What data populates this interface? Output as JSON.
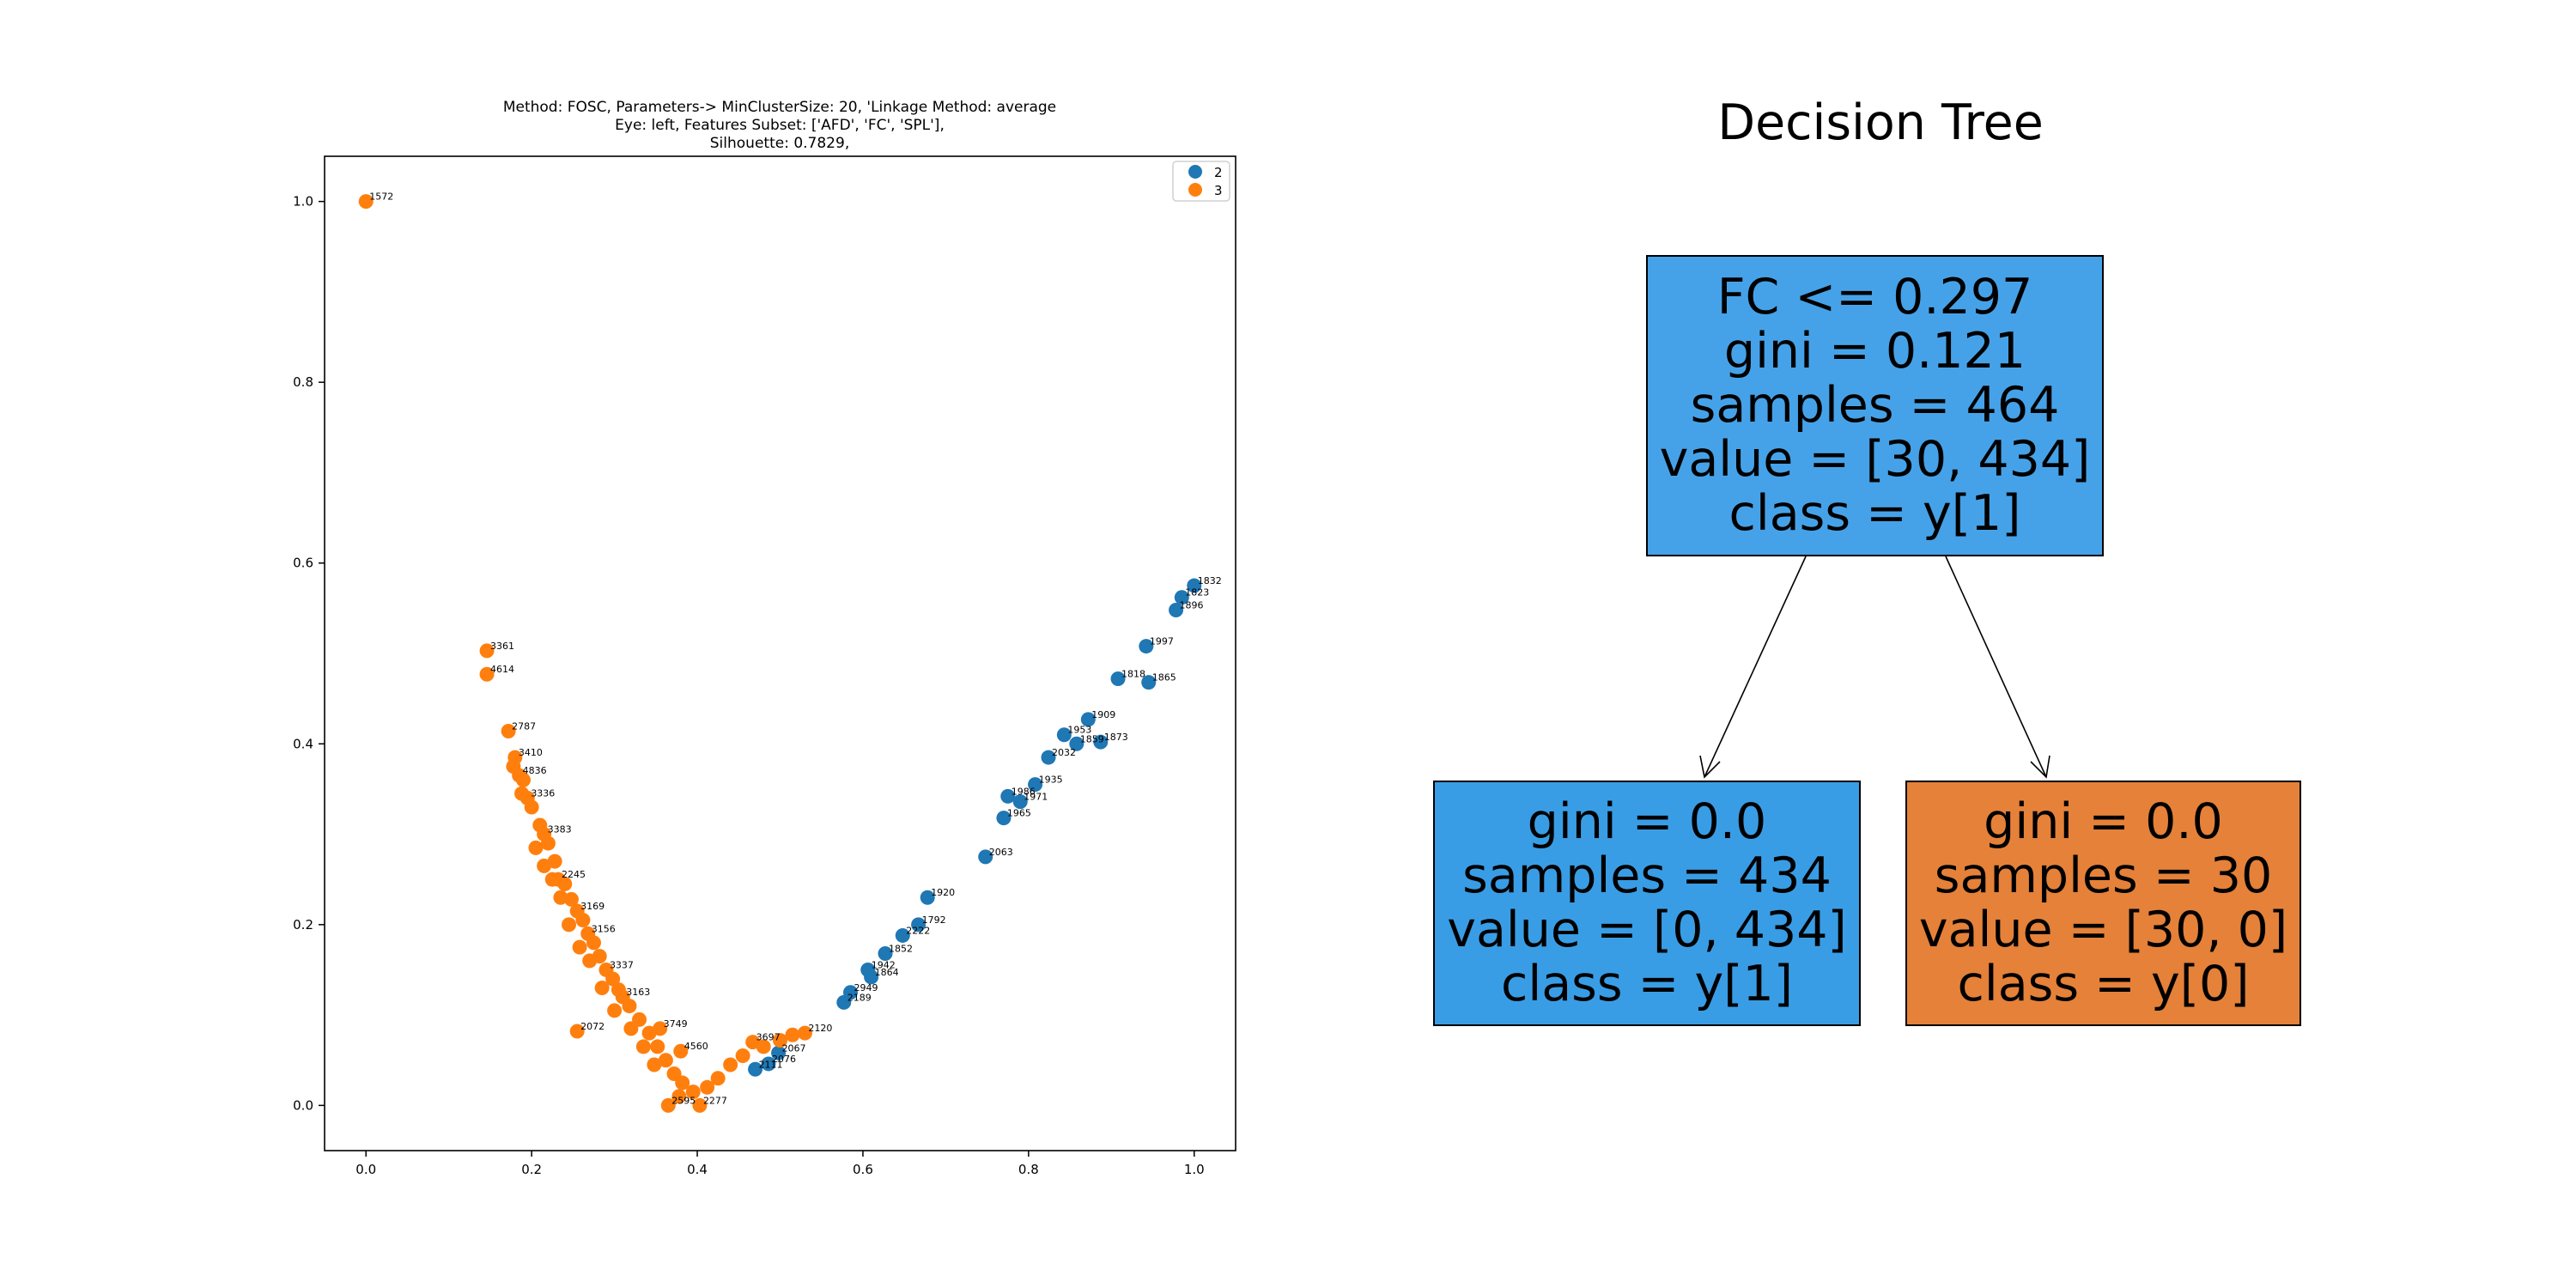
{
  "scatter_title": {
    "line1": "Method: FOSC, Parameters-> MinClusterSize: 20, 'Linkage Method: average",
    "line2": "Eye: left, Features Subset: ['AFD', 'FC', 'SPL'],",
    "line3": "Silhouette: 0.7829,"
  },
  "tree": {
    "title": "Decision Tree",
    "root": {
      "condition": "FC <= 0.297",
      "gini": "gini = 0.121",
      "samples": "samples = 464",
      "value": "value = [30, 434]",
      "class": "class = y[1]",
      "color": "#46a2e8"
    },
    "left": {
      "gini": "gini = 0.0",
      "samples": "samples = 434",
      "value": "value = [0, 434]",
      "class": "class = y[1]",
      "color": "#399de5"
    },
    "right": {
      "gini": "gini = 0.0",
      "samples": "samples = 30",
      "value": "value = [30, 0]",
      "class": "class = y[0]",
      "color": "#e58139"
    }
  },
  "chart_data": {
    "type": "scatter",
    "title": "Method: FOSC, Parameters-> MinClusterSize: 20, 'Linkage Method: average\nEye: left, Features Subset: ['AFD', 'FC', 'SPL'],\nSilhouette: 0.7829,",
    "xlabel": "",
    "ylabel": "",
    "xlim": [
      -0.05,
      1.05
    ],
    "ylim": [
      -0.05,
      1.05
    ],
    "xticks": [
      0.0,
      0.2,
      0.4,
      0.6,
      0.8,
      1.0
    ],
    "yticks": [
      0.0,
      0.2,
      0.4,
      0.6,
      0.8,
      1.0
    ],
    "xtick_labels": [
      "0.0",
      "0.2",
      "0.4",
      "0.6",
      "0.8",
      "1.0"
    ],
    "ytick_labels": [
      "0.0",
      "0.2",
      "0.4",
      "0.6",
      "0.8",
      "1.0"
    ],
    "legend_position": "top-right",
    "series": [
      {
        "name": "2",
        "color": "#1f77b4",
        "points": [
          {
            "x": 1.0,
            "y": 0.575,
            "label": "1832"
          },
          {
            "x": 0.985,
            "y": 0.562,
            "label": "1823"
          },
          {
            "x": 0.978,
            "y": 0.548,
            "label": "1896"
          },
          {
            "x": 0.942,
            "y": 0.508,
            "label": "1997"
          },
          {
            "x": 0.908,
            "y": 0.472,
            "label": "1818"
          },
          {
            "x": 0.945,
            "y": 0.468,
            "label": "1865"
          },
          {
            "x": 0.872,
            "y": 0.427,
            "label": "1909"
          },
          {
            "x": 0.843,
            "y": 0.41,
            "label": "1953"
          },
          {
            "x": 0.887,
            "y": 0.402,
            "label": "1873"
          },
          {
            "x": 0.858,
            "y": 0.4,
            "label": "1859"
          },
          {
            "x": 0.824,
            "y": 0.385,
            "label": "2032"
          },
          {
            "x": 0.808,
            "y": 0.355,
            "label": "1935"
          },
          {
            "x": 0.775,
            "y": 0.342,
            "label": "1986"
          },
          {
            "x": 0.79,
            "y": 0.336,
            "label": "1971"
          },
          {
            "x": 0.77,
            "y": 0.318,
            "label": "1965"
          },
          {
            "x": 0.748,
            "y": 0.275,
            "label": "2063"
          },
          {
            "x": 0.678,
            "y": 0.23,
            "label": "1920"
          },
          {
            "x": 0.667,
            "y": 0.2,
            "label": "1792"
          },
          {
            "x": 0.648,
            "y": 0.188,
            "label": "2222"
          },
          {
            "x": 0.627,
            "y": 0.168,
            "label": "1852"
          },
          {
            "x": 0.606,
            "y": 0.15,
            "label": "1942"
          },
          {
            "x": 0.61,
            "y": 0.142,
            "label": "1864"
          },
          {
            "x": 0.585,
            "y": 0.125,
            "label": "2949"
          },
          {
            "x": 0.577,
            "y": 0.114,
            "label": "2189"
          },
          {
            "x": 0.498,
            "y": 0.058,
            "label": "2067"
          },
          {
            "x": 0.486,
            "y": 0.046,
            "label": "2076"
          },
          {
            "x": 0.47,
            "y": 0.04,
            "label": "2111"
          }
        ]
      },
      {
        "name": "3",
        "color": "#ff7f0e",
        "points": [
          {
            "x": 0.0,
            "y": 1.0,
            "label": "1572"
          },
          {
            "x": 0.146,
            "y": 0.503,
            "label": "3361"
          },
          {
            "x": 0.146,
            "y": 0.477,
            "label": "4614"
          },
          {
            "x": 0.172,
            "y": 0.414,
            "label": "2787"
          },
          {
            "x": 0.18,
            "y": 0.385,
            "label": "3410"
          },
          {
            "x": 0.185,
            "y": 0.365,
            "label": "4836"
          },
          {
            "x": 0.195,
            "y": 0.34,
            "label": "3336"
          },
          {
            "x": 0.215,
            "y": 0.3,
            "label": "3383"
          },
          {
            "x": 0.232,
            "y": 0.25,
            "label": "2245"
          },
          {
            "x": 0.255,
            "y": 0.215,
            "label": "3169"
          },
          {
            "x": 0.268,
            "y": 0.19,
            "label": "3156"
          },
          {
            "x": 0.29,
            "y": 0.15,
            "label": "3337"
          },
          {
            "x": 0.31,
            "y": 0.12,
            "label": "3163"
          },
          {
            "x": 0.255,
            "y": 0.082,
            "label": "2072"
          },
          {
            "x": 0.355,
            "y": 0.085,
            "label": "3749"
          },
          {
            "x": 0.38,
            "y": 0.06,
            "label": "4560"
          },
          {
            "x": 0.467,
            "y": 0.07,
            "label": "3697"
          },
          {
            "x": 0.53,
            "y": 0.08,
            "label": "2120"
          },
          {
            "x": 0.365,
            "y": 0.0,
            "label": "2595"
          },
          {
            "x": 0.403,
            "y": 0.0,
            "label": "2277"
          },
          {
            "x": 0.19,
            "y": 0.36,
            "label": ""
          },
          {
            "x": 0.2,
            "y": 0.33,
            "label": ""
          },
          {
            "x": 0.21,
            "y": 0.31,
            "label": ""
          },
          {
            "x": 0.22,
            "y": 0.29,
            "label": ""
          },
          {
            "x": 0.228,
            "y": 0.27,
            "label": ""
          },
          {
            "x": 0.24,
            "y": 0.245,
            "label": ""
          },
          {
            "x": 0.248,
            "y": 0.228,
            "label": ""
          },
          {
            "x": 0.262,
            "y": 0.205,
            "label": ""
          },
          {
            "x": 0.275,
            "y": 0.18,
            "label": ""
          },
          {
            "x": 0.282,
            "y": 0.165,
            "label": ""
          },
          {
            "x": 0.298,
            "y": 0.14,
            "label": ""
          },
          {
            "x": 0.305,
            "y": 0.128,
            "label": ""
          },
          {
            "x": 0.318,
            "y": 0.11,
            "label": ""
          },
          {
            "x": 0.33,
            "y": 0.095,
            "label": ""
          },
          {
            "x": 0.342,
            "y": 0.08,
            "label": ""
          },
          {
            "x": 0.352,
            "y": 0.065,
            "label": ""
          },
          {
            "x": 0.362,
            "y": 0.05,
            "label": ""
          },
          {
            "x": 0.372,
            "y": 0.035,
            "label": ""
          },
          {
            "x": 0.382,
            "y": 0.025,
            "label": ""
          },
          {
            "x": 0.395,
            "y": 0.015,
            "label": ""
          },
          {
            "x": 0.412,
            "y": 0.02,
            "label": ""
          },
          {
            "x": 0.425,
            "y": 0.03,
            "label": ""
          },
          {
            "x": 0.44,
            "y": 0.045,
            "label": ""
          },
          {
            "x": 0.455,
            "y": 0.055,
            "label": ""
          },
          {
            "x": 0.48,
            "y": 0.065,
            "label": ""
          },
          {
            "x": 0.5,
            "y": 0.072,
            "label": ""
          },
          {
            "x": 0.515,
            "y": 0.078,
            "label": ""
          },
          {
            "x": 0.235,
            "y": 0.23,
            "label": ""
          },
          {
            "x": 0.225,
            "y": 0.25,
            "label": ""
          },
          {
            "x": 0.245,
            "y": 0.2,
            "label": ""
          },
          {
            "x": 0.258,
            "y": 0.175,
            "label": ""
          },
          {
            "x": 0.27,
            "y": 0.16,
            "label": ""
          },
          {
            "x": 0.285,
            "y": 0.13,
            "label": ""
          },
          {
            "x": 0.3,
            "y": 0.105,
            "label": ""
          },
          {
            "x": 0.32,
            "y": 0.085,
            "label": ""
          },
          {
            "x": 0.335,
            "y": 0.065,
            "label": ""
          },
          {
            "x": 0.348,
            "y": 0.045,
            "label": ""
          },
          {
            "x": 0.378,
            "y": 0.01,
            "label": ""
          },
          {
            "x": 0.205,
            "y": 0.285,
            "label": ""
          },
          {
            "x": 0.215,
            "y": 0.265,
            "label": ""
          },
          {
            "x": 0.178,
            "y": 0.375,
            "label": ""
          },
          {
            "x": 0.188,
            "y": 0.345,
            "label": ""
          }
        ]
      }
    ]
  }
}
